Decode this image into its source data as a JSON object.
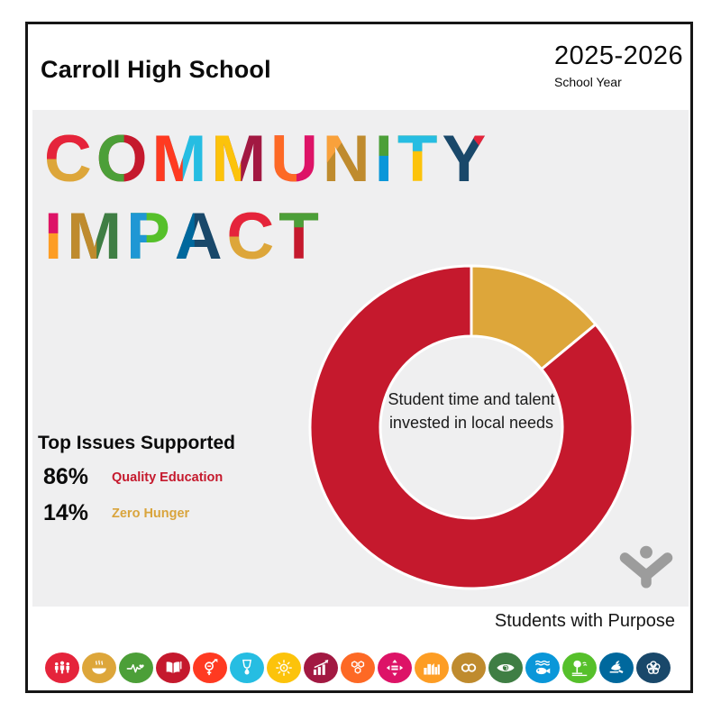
{
  "header": {
    "school_name": "Carroll High School",
    "year": "2025-2026",
    "year_label": "School Year"
  },
  "title": {
    "lines": [
      {
        "text": "COMMUNITY",
        "letters": [
          {
            "ch": "C",
            "base": "#DDA63A",
            "over": "#E5243B",
            "clip": "top-50"
          },
          {
            "ch": "O",
            "base": "#C5192D",
            "over": "#4C9F38",
            "clip": "left-50"
          },
          {
            "ch": "M",
            "base": "#26BDE2",
            "over": "#FF3A21",
            "clip": "left-52"
          },
          {
            "ch": "M",
            "base": "#A21942",
            "over": "#FCC30B",
            "clip": "left-50"
          },
          {
            "ch": "U",
            "base": "#DD1367",
            "over": "#FD6925",
            "clip": "left-50"
          },
          {
            "ch": "N",
            "base": "#BF8B2E",
            "over": "#F9A13B",
            "clip": "nw-diag"
          },
          {
            "ch": "I",
            "base": "#0A97D9",
            "over": "#4C9F38",
            "clip": "top-45"
          },
          {
            "ch": "T",
            "base": "#FCC30B",
            "over": "#26BDE2",
            "clip": "top-38"
          },
          {
            "ch": "Y",
            "base": "#19486A",
            "over": "#E5243B",
            "clip": "y-arm"
          }
        ]
      },
      {
        "text": "IMPACT",
        "letters": [
          {
            "ch": "I",
            "base": "#FD9D24",
            "over": "#DD1367",
            "clip": "top-45"
          },
          {
            "ch": "M",
            "base": "#3F7E44",
            "over": "#BF8B2E",
            "clip": "left-50"
          },
          {
            "ch": "P",
            "base": "#56C02B",
            "over": "#1F97D4",
            "clip": "left-42"
          },
          {
            "ch": "A",
            "base": "#19486A",
            "over": "#00689D",
            "clip": "left-38"
          },
          {
            "ch": "C",
            "base": "#DDA63A",
            "over": "#E5243B",
            "clip": "top-50"
          },
          {
            "ch": "T",
            "base": "#C5192D",
            "over": "#4C9F38",
            "clip": "top-36"
          }
        ]
      }
    ]
  },
  "chart_data": {
    "type": "pie",
    "donut": true,
    "units": "percent",
    "start_angle_deg": 0,
    "direction": "clockwise-from-top",
    "center_label": "Student time and talent invested in local needs",
    "slices": [
      {
        "label": "Zero Hunger",
        "value": 14,
        "color": "#DDA63A"
      },
      {
        "label": "Quality Education",
        "value": 86,
        "color": "#C5192D"
      }
    ],
    "separator_color": "#FFFFFF"
  },
  "top_issues": {
    "heading": "Top Issues Supported",
    "items": [
      {
        "pct": "86%",
        "label": "Quality Education",
        "color": "#C5192D"
      },
      {
        "pct": "14%",
        "label": "Zero Hunger",
        "color": "#D9A43C"
      }
    ]
  },
  "footer": {
    "brand": "Students with Purpose",
    "logo_color": "#9C9C9C"
  },
  "sdg_icons": [
    {
      "name": "sdg-no-poverty-icon",
      "color": "#E5243B"
    },
    {
      "name": "sdg-zero-hunger-icon",
      "color": "#DDA63A"
    },
    {
      "name": "sdg-good-health-icon",
      "color": "#4C9F38"
    },
    {
      "name": "sdg-quality-education-icon",
      "color": "#C5192D"
    },
    {
      "name": "sdg-gender-equality-icon",
      "color": "#FF3A21"
    },
    {
      "name": "sdg-clean-water-icon",
      "color": "#26BDE2"
    },
    {
      "name": "sdg-clean-energy-icon",
      "color": "#FCC30B"
    },
    {
      "name": "sdg-decent-work-icon",
      "color": "#A21942"
    },
    {
      "name": "sdg-industry-innovation-icon",
      "color": "#FD6925"
    },
    {
      "name": "sdg-reduced-inequalities-icon",
      "color": "#DD1367"
    },
    {
      "name": "sdg-sustainable-cities-icon",
      "color": "#FD9D24"
    },
    {
      "name": "sdg-responsible-consumption-icon",
      "color": "#BF8B2E"
    },
    {
      "name": "sdg-climate-action-icon",
      "color": "#3F7E44"
    },
    {
      "name": "sdg-life-below-water-icon",
      "color": "#0A97D9"
    },
    {
      "name": "sdg-life-on-land-icon",
      "color": "#56C02B"
    },
    {
      "name": "sdg-peace-justice-icon",
      "color": "#00689D"
    },
    {
      "name": "sdg-partnerships-icon",
      "color": "#19486A"
    }
  ]
}
